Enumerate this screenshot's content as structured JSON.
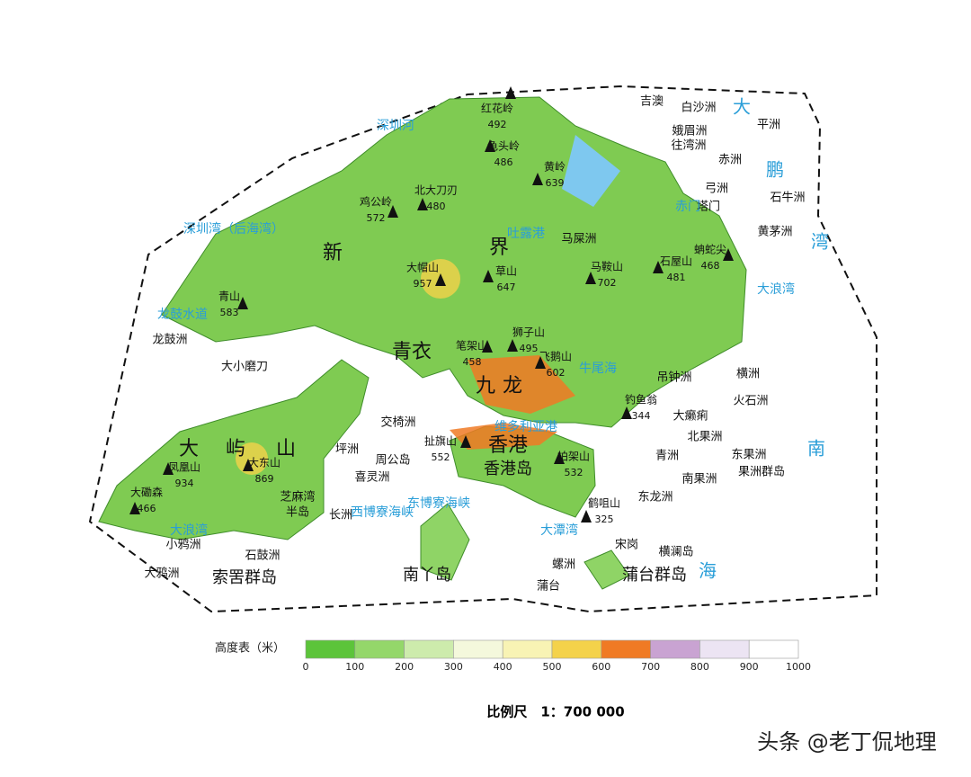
{
  "map": {
    "regions": [
      "新",
      "界",
      "九",
      "龙",
      "青衣",
      "大",
      "屿",
      "山",
      "香港",
      "香港岛",
      "南丫岛",
      "索罟群岛",
      "蒲台群岛"
    ],
    "peaks": [
      {
        "name": "红花岭",
        "elevation": "492"
      },
      {
        "name": "龟头岭",
        "elevation": "486"
      },
      {
        "name": "黄岭",
        "elevation": "639"
      },
      {
        "name": "北大刀刃",
        "elevation": "480"
      },
      {
        "name": "鸡公岭",
        "elevation": "572"
      },
      {
        "name": "大帽山",
        "elevation": "957"
      },
      {
        "name": "草山",
        "elevation": "647"
      },
      {
        "name": "马鞍山",
        "elevation": "702"
      },
      {
        "name": "石屋山",
        "elevation": "481"
      },
      {
        "name": "蚺蛇尖",
        "elevation": "468"
      },
      {
        "name": "青山",
        "elevation": "583"
      },
      {
        "name": "笔架山",
        "elevation": "458"
      },
      {
        "name": "狮子山",
        "elevation": "495"
      },
      {
        "name": "飞鹅山",
        "elevation": "602"
      },
      {
        "name": "钓鱼翁",
        "elevation": "344"
      },
      {
        "name": "扯旗山",
        "elevation": "552"
      },
      {
        "name": "柏架山",
        "elevation": "532"
      },
      {
        "name": "凤凰山",
        "elevation": "934"
      },
      {
        "name": "大东山",
        "elevation": "869"
      },
      {
        "name": "大磡森",
        "elevation": "466"
      },
      {
        "name": "鹤咀山",
        "elevation": "325"
      }
    ],
    "places": [
      "吉澳",
      "白沙洲",
      "娥眉洲",
      "往湾洲",
      "平洲",
      "赤洲",
      "弓洲",
      "塔门",
      "石牛洲",
      "黄茅洲",
      "马屎洲",
      "龙鼓洲",
      "大小磨刀",
      "吊钟洲",
      "横洲",
      "火石洲",
      "大癞痢",
      "北果洲",
      "东果洲",
      "果洲群岛",
      "南果洲",
      "青洲",
      "交椅洲",
      "坪洲",
      "周公岛",
      "喜灵洲",
      "长洲",
      "芝麻湾",
      "半岛",
      "小鸦洲",
      "石鼓洲",
      "大鸦洲",
      "蒲台",
      "螺洲",
      "宋岗",
      "横澜岛",
      "东龙洲"
    ],
    "water": [
      "深圳河",
      "深圳湾（后海湾）",
      "龙鼓水道",
      "大",
      "鹏",
      "湾",
      "大浪湾",
      "吐露港",
      "赤门",
      "牛尾海",
      "维多利亚港",
      "西博寮海峡",
      "东博寮海峡",
      "大浪湾",
      "南",
      "海",
      "大潭湾"
    ]
  },
  "legend": {
    "title": "高度表（米）",
    "ticks": [
      0,
      100,
      200,
      300,
      400,
      500,
      600,
      700,
      800,
      900,
      1000
    ],
    "colors": [
      "#5cc43a",
      "#94d76a",
      "#cdebac",
      "#f4f8dc",
      "#f8f3b4",
      "#f4d24a",
      "#f07a24",
      "#c9a3d2",
      "#ece4f3",
      "#ffffff"
    ]
  },
  "scale": "比例尺　1：700 000",
  "watermark": "头条 @老丁侃地理"
}
